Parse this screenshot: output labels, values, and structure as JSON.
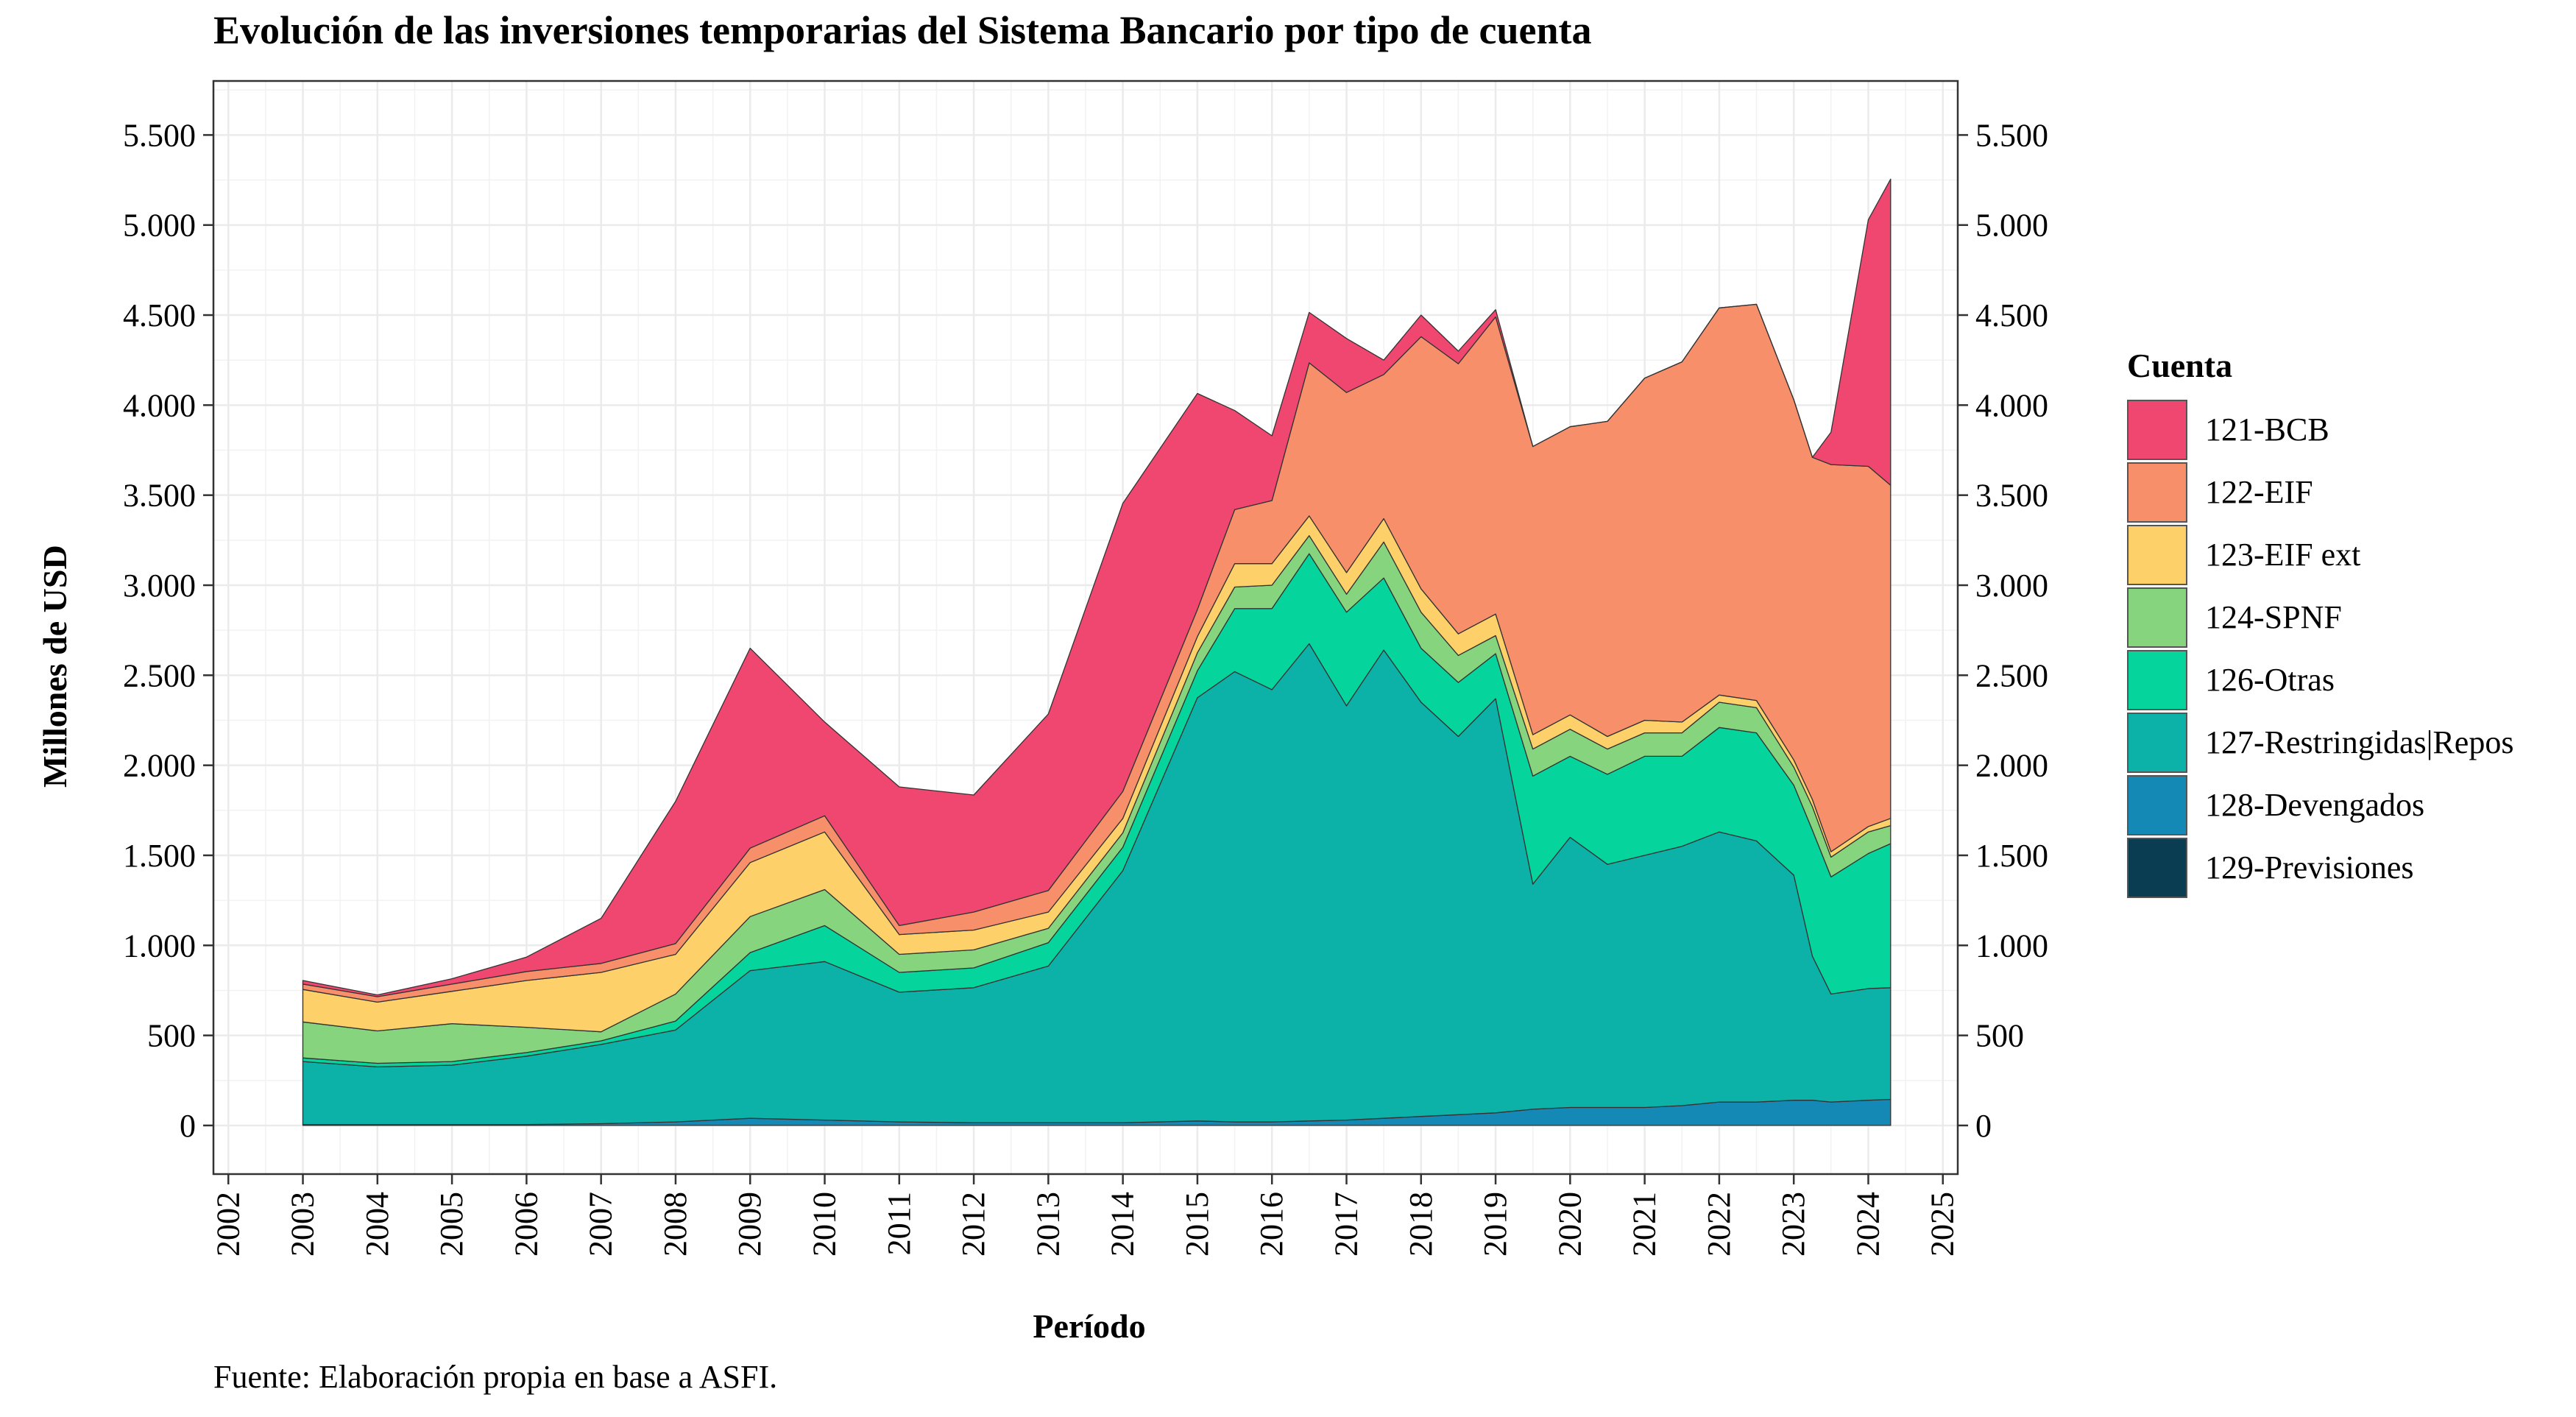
{
  "title": "Evolución de las inversiones temporarias del Sistema Bancario por tipo de cuenta",
  "caption": "Fuente: Elaboración propia en base a ASFI.",
  "chart_data": {
    "type": "area",
    "stacked": true,
    "title": "Evolución de las inversiones temporarias del Sistema Bancario por tipo de cuenta",
    "xlabel": "Período",
    "ylabel": "Millones de USD",
    "xlim": [
      2001.8,
      2025.2
    ],
    "ylim": [
      -270,
      5800
    ],
    "x_ticks": [
      "2002",
      "2003",
      "2004",
      "2005",
      "2006",
      "2007",
      "2008",
      "2009",
      "2010",
      "2011",
      "2012",
      "2013",
      "2014",
      "2015",
      "2016",
      "2017",
      "2018",
      "2019",
      "2020",
      "2021",
      "2022",
      "2023",
      "2024",
      "2025"
    ],
    "y_ticks": [
      0,
      500,
      1000,
      1500,
      2000,
      2500,
      3000,
      3500,
      4000,
      4500,
      5000,
      5500
    ],
    "y_tick_labels": [
      "0",
      "500",
      "1.000",
      "1.500",
      "2.000",
      "2.500",
      "3.000",
      "3.500",
      "4.000",
      "4.500",
      "5.000",
      "5.500"
    ],
    "grid": true,
    "legend_title": "Cuenta",
    "legend_position": "right",
    "x": [
      2003.0,
      2004.0,
      2005.0,
      2006.0,
      2007.0,
      2008.0,
      2009.0,
      2010.0,
      2011.0,
      2012.0,
      2013.0,
      2014.0,
      2015.0,
      2015.5,
      2016.0,
      2016.5,
      2017.0,
      2017.5,
      2018.0,
      2018.5,
      2019.0,
      2019.5,
      2020.0,
      2020.5,
      2021.0,
      2021.5,
      2022.0,
      2022.5,
      2023.0,
      2023.25,
      2023.5,
      2024.0,
      2024.3
    ],
    "series": [
      {
        "name": "129-Previsiones",
        "color": "#0b3d52",
        "values": [
          0,
          0,
          0,
          0,
          0,
          0,
          0,
          0,
          0,
          0,
          0,
          0,
          0,
          0,
          0,
          0,
          0,
          0,
          0,
          0,
          0,
          0,
          0,
          0,
          0,
          0,
          0,
          0,
          0,
          0,
          0,
          0,
          0
        ]
      },
      {
        "name": "128-Devengados",
        "color": "#1589b5",
        "values": [
          5,
          5,
          5,
          5,
          10,
          20,
          40,
          30,
          20,
          15,
          15,
          15,
          25,
          20,
          20,
          25,
          30,
          40,
          50,
          60,
          70,
          90,
          100,
          100,
          100,
          110,
          130,
          130,
          140,
          140,
          130,
          140,
          145
        ]
      },
      {
        "name": "127-Restringidas|Repos",
        "color": "#0cb1a8",
        "values": [
          350,
          320,
          330,
          380,
          440,
          510,
          820,
          880,
          720,
          750,
          870,
          1400,
          2350,
          2500,
          2400,
          2650,
          2300,
          2600,
          2300,
          2100,
          2300,
          1250,
          1500,
          1350,
          1400,
          1440,
          1500,
          1450,
          1250,
          800,
          600,
          620,
          620
        ]
      },
      {
        "name": "126-Otras",
        "color": "#05d49c",
        "values": [
          20,
          20,
          20,
          20,
          20,
          50,
          100,
          200,
          110,
          110,
          130,
          130,
          150,
          350,
          450,
          500,
          520,
          400,
          300,
          300,
          250,
          600,
          450,
          500,
          550,
          500,
          580,
          600,
          500,
          700,
          650,
          750,
          800
        ]
      },
      {
        "name": "124-SPNF",
        "color": "#87d47e",
        "values": [
          200,
          180,
          210,
          140,
          50,
          150,
          200,
          200,
          100,
          100,
          80,
          80,
          100,
          120,
          130,
          100,
          100,
          200,
          200,
          150,
          100,
          150,
          150,
          140,
          130,
          130,
          140,
          140,
          100,
          130,
          110,
          120,
          100
        ]
      },
      {
        "name": "123-EIF ext",
        "color": "#fdd06a",
        "values": [
          180,
          160,
          180,
          260,
          330,
          220,
          300,
          320,
          110,
          110,
          90,
          80,
          90,
          130,
          120,
          110,
          120,
          130,
          130,
          120,
          120,
          80,
          80,
          70,
          70,
          60,
          40,
          40,
          40,
          40,
          30,
          30,
          40
        ]
      },
      {
        "name": "122-EIF",
        "color": "#f78f6b",
        "values": [
          30,
          30,
          40,
          50,
          50,
          60,
          80,
          90,
          50,
          100,
          120,
          150,
          150,
          300,
          350,
          850,
          1000,
          800,
          1400,
          1500,
          1650,
          1600,
          1600,
          1750,
          1900,
          2000,
          2150,
          2200,
          2000,
          1900,
          2150,
          2000,
          1850
        ]
      },
      {
        "name": "121-BCB",
        "color": "#ef476f",
        "values": [
          20,
          10,
          30,
          80,
          250,
          790,
          1110,
          520,
          770,
          650,
          980,
          1600,
          1200,
          550,
          360,
          280,
          300,
          80,
          120,
          70,
          40,
          0,
          0,
          0,
          0,
          0,
          0,
          0,
          0,
          0,
          180,
          1370,
          1700
        ]
      }
    ]
  }
}
